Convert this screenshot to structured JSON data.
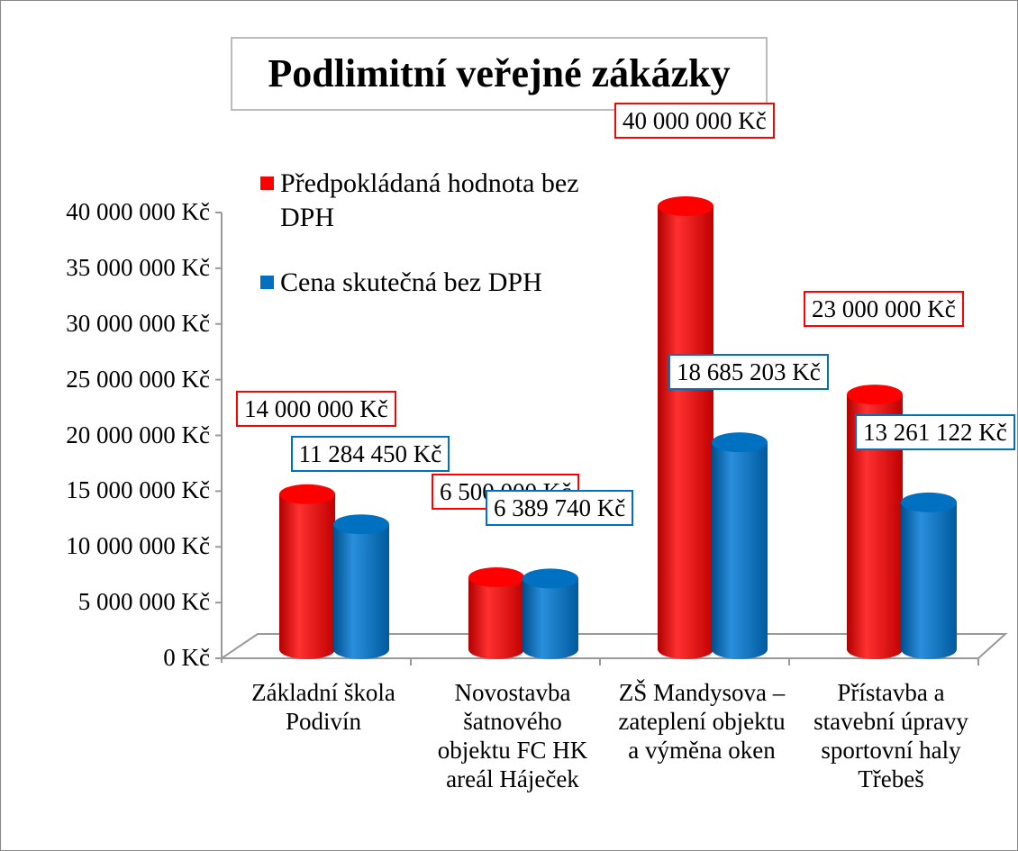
{
  "chart_data": {
    "type": "bar3d_cylinder",
    "title": "Podlimitní veřejné zákázky",
    "categories": [
      "Základní škola Podivín",
      "Novostavba šatnového objektu FC HK areál Háječek",
      "ZŠ Mandysova – zateplení objektu a výměna oken",
      "Přístavba a stavební úpravy sportovní haly Třebeš"
    ],
    "series": [
      {
        "name": "Předpokládaná hodnota bez DPH",
        "color": "#ff0000",
        "values": [
          14000000,
          6500000,
          40000000,
          23000000
        ],
        "value_labels": [
          "14 000 000 Kč",
          "6 500 000 Kč",
          "40 000 000 Kč",
          "23 000 000 Kč"
        ]
      },
      {
        "name": "Cena skutečná bez DPH",
        "color": "#0070c0",
        "values": [
          11284450,
          6389740,
          18685203,
          13261122
        ],
        "value_labels": [
          "11 284 450 Kč",
          "6 389 740 Kč",
          "18 685 203 Kč",
          "13 261 122 Kč"
        ]
      }
    ],
    "ylim": [
      0,
      40000000
    ],
    "yticks": [
      {
        "value": 0,
        "label": "0 Kč"
      },
      {
        "value": 5000000,
        "label": "5 000 000 Kč"
      },
      {
        "value": 10000000,
        "label": "10 000 000 Kč"
      },
      {
        "value": 15000000,
        "label": "15 000 000 Kč"
      },
      {
        "value": 20000000,
        "label": "20 000 000 Kč"
      },
      {
        "value": 25000000,
        "label": "25 000 000 Kč"
      },
      {
        "value": 30000000,
        "label": "30 000 000 Kč"
      },
      {
        "value": 35000000,
        "label": "35 000 000 Kč"
      },
      {
        "value": 40000000,
        "label": "40 000 000 Kč"
      }
    ],
    "grid": false,
    "legend": "top-left"
  }
}
